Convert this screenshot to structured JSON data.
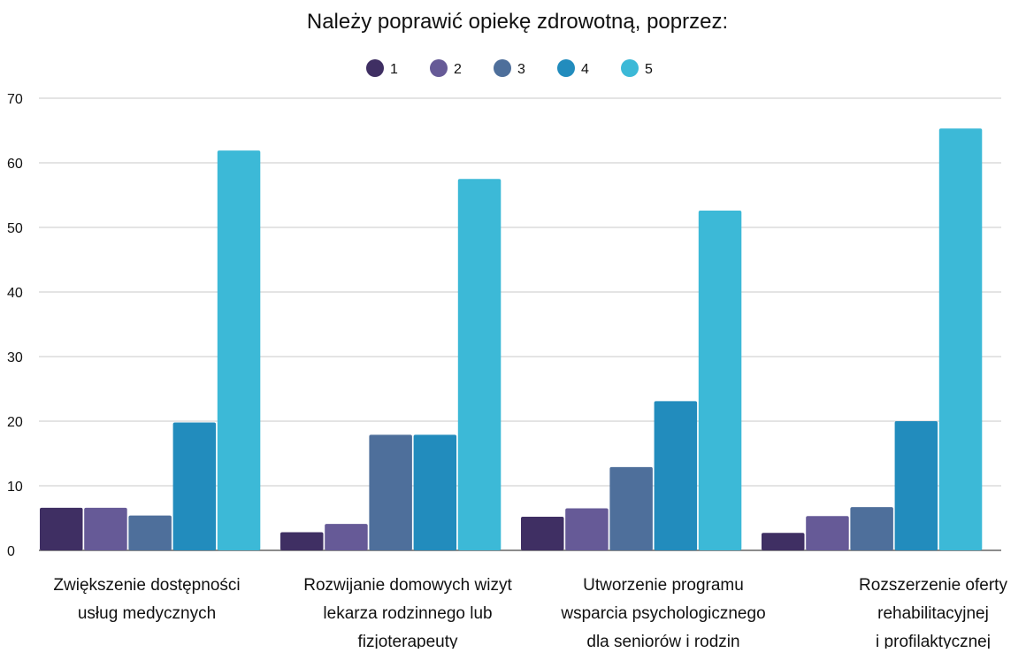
{
  "chart_data": {
    "type": "bar",
    "title": "Należy poprawić opiekę zdrowotną, poprzez:",
    "xlabel": "",
    "ylabel": "",
    "ylim": [
      0,
      70
    ],
    "yticks": [
      0,
      10,
      20,
      30,
      40,
      50,
      60,
      70
    ],
    "grid": true,
    "legend_position": "top",
    "categories": [
      [
        "Zwiększenie dostępności",
        "usług medycznych"
      ],
      [
        "Rozwijanie domowych wizyt",
        "lekarza rodzinnego lub",
        "fizjoterapeuty"
      ],
      [
        "Utworzenie programu",
        "wsparcia psychologicznego",
        "dla seniorów i rodzin"
      ],
      [
        "Rozszerzenie oferty",
        "rehabilitacyjnej",
        "i profilaktycznej"
      ]
    ],
    "series": [
      {
        "name": "1",
        "color": "#3f2f63",
        "values": [
          6.6,
          2.8,
          5.2,
          2.7
        ]
      },
      {
        "name": "2",
        "color": "#665a97",
        "values": [
          6.6,
          4.1,
          6.5,
          5.3
        ]
      },
      {
        "name": "3",
        "color": "#4e6f9b",
        "values": [
          5.4,
          17.9,
          12.9,
          6.7
        ]
      },
      {
        "name": "4",
        "color": "#228cbd",
        "values": [
          19.8,
          17.9,
          23.1,
          20.0
        ]
      },
      {
        "name": "5",
        "color": "#3cb9d7",
        "values": [
          61.9,
          57.5,
          52.6,
          65.3
        ]
      }
    ]
  }
}
